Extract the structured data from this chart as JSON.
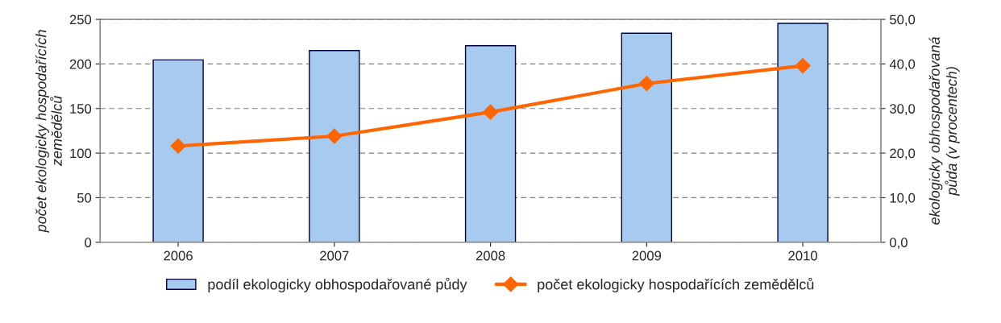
{
  "chart_data": {
    "type": "bar",
    "categories": [
      "2006",
      "2007",
      "2008",
      "2009",
      "2010"
    ],
    "series": [
      {
        "name": "podíl ekologicky obhospodařované půdy",
        "axis": "y2",
        "color": "#a6caf0",
        "values": [
          40.9,
          43.0,
          44.1,
          46.9,
          49.1
        ]
      },
      {
        "name": "počet ekologicky hospodařících zemědělců",
        "type": "line",
        "axis": "y",
        "color": "#ff6600",
        "marker": "diamond",
        "values": [
          108,
          119,
          146,
          178,
          198
        ]
      }
    ],
    "ylabel": "počet ekologicky hospodařících\nzemědělců",
    "y2label": "ekologicky obhospodařovaná\npůda (v procentech)",
    "ylim": [
      0,
      250
    ],
    "yticks": [
      0,
      50,
      100,
      150,
      200,
      250
    ],
    "y2lim": [
      0,
      50
    ],
    "y2ticks": [
      {
        "value": 0,
        "label": "0,0"
      },
      {
        "value": 10,
        "label": "10,0"
      },
      {
        "value": 20,
        "label": "20,0"
      },
      {
        "value": 30,
        "label": "30,0"
      },
      {
        "value": 40,
        "label": "40,0"
      },
      {
        "value": 50,
        "label": "50,0"
      }
    ],
    "grid": "y",
    "legend": "bottom"
  }
}
